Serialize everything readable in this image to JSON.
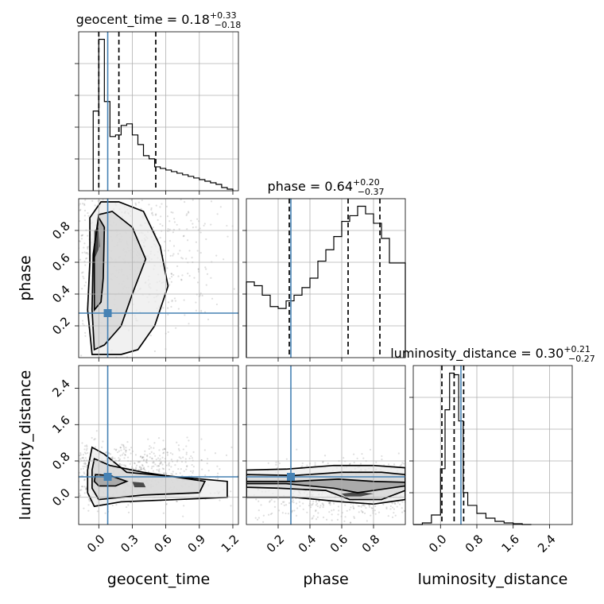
{
  "chart_data": {
    "type": "corner",
    "parameters": [
      "geocent_time",
      "phase",
      "luminosity_distance"
    ],
    "axis_labels": {
      "geocent_time": "geocent_time",
      "phase": "phase",
      "luminosity_distance": "luminosity_distance"
    },
    "ranges": {
      "geocent_time": [
        -0.18,
        1.25
      ],
      "phase": [
        0.0,
        1.0
      ],
      "luminosity_distance": [
        -0.6,
        2.9
      ]
    },
    "ticks": {
      "geocent_time": [
        "0.0",
        "0.3",
        "0.6",
        "0.9",
        "1.2"
      ],
      "phase": [
        "0.2",
        "0.4",
        "0.6",
        "0.8"
      ],
      "luminosity_distance": [
        "0.0",
        "0.8",
        "1.6",
        "2.4"
      ]
    },
    "truths": {
      "geocent_time": 0.08,
      "phase": 0.28,
      "luminosity_distance": 0.45
    },
    "titles": {
      "geocent_time": {
        "name": "geocent_time",
        "median": "0.18",
        "plus": "+0.33",
        "minus": "−0.18"
      },
      "phase": {
        "name": "phase",
        "median": "0.64",
        "plus": "+0.20",
        "minus": "−0.37"
      },
      "luminosity_distance": {
        "name": "luminosity_distance",
        "median": "0.30",
        "plus": "+0.21",
        "minus": "−0.27"
      }
    },
    "quantiles": {
      "geocent_time": [
        0.0,
        0.18,
        0.51
      ],
      "phase": [
        0.27,
        0.64,
        0.84
      ],
      "luminosity_distance": [
        0.03,
        0.3,
        0.51
      ]
    },
    "histograms": {
      "geocent_time": {
        "edges": [
          -0.05,
          0.0,
          0.05,
          0.1,
          0.15,
          0.2,
          0.25,
          0.3,
          0.35,
          0.4,
          0.45,
          0.5,
          0.55,
          0.6,
          0.65,
          0.7,
          0.75,
          0.8,
          0.85,
          0.9,
          0.95,
          1.0,
          1.05,
          1.1,
          1.15,
          1.2
        ],
        "counts": [
          0.5,
          0.95,
          0.56,
          0.34,
          0.35,
          0.41,
          0.42,
          0.35,
          0.29,
          0.22,
          0.2,
          0.15,
          0.14,
          0.13,
          0.12,
          0.11,
          0.1,
          0.09,
          0.08,
          0.07,
          0.06,
          0.05,
          0.04,
          0.02,
          0.01
        ]
      },
      "phase": {
        "edges": [
          0.0,
          0.05,
          0.1,
          0.15,
          0.2,
          0.25,
          0.3,
          0.35,
          0.4,
          0.45,
          0.5,
          0.55,
          0.6,
          0.65,
          0.7,
          0.75,
          0.8,
          0.85,
          0.9,
          0.95,
          1.0
        ],
        "counts": [
          0.4,
          0.38,
          0.33,
          0.27,
          0.26,
          0.3,
          0.33,
          0.37,
          0.42,
          0.51,
          0.57,
          0.64,
          0.72,
          0.75,
          0.8,
          0.76,
          0.71,
          0.63,
          0.5,
          0.5
        ]
      },
      "luminosity_distance": {
        "edges": [
          -0.6,
          -0.4,
          -0.2,
          0.0,
          0.1,
          0.2,
          0.3,
          0.4,
          0.5,
          0.6,
          0.8,
          1.0,
          1.2,
          1.4,
          1.6,
          1.8,
          2.0
        ],
        "counts": [
          0.0,
          0.01,
          0.06,
          0.35,
          0.72,
          0.95,
          0.94,
          0.65,
          0.2,
          0.12,
          0.07,
          0.04,
          0.02,
          0.01,
          0.005,
          0.0
        ]
      }
    },
    "scatter_2d": {
      "geocent_time_vs_phase": {
        "density_peak": {
          "x": -0.03,
          "y": 0.72
        },
        "contours": [
          [
            [
              -0.06,
              0.02
            ],
            [
              -0.1,
              0.3
            ],
            [
              -0.08,
              0.6
            ],
            [
              -0.08,
              0.88
            ],
            [
              0.02,
              0.98
            ],
            [
              0.18,
              0.98
            ],
            [
              0.4,
              0.92
            ],
            [
              0.55,
              0.7
            ],
            [
              0.62,
              0.45
            ],
            [
              0.5,
              0.2
            ],
            [
              0.35,
              0.05
            ],
            [
              0.2,
              0.02
            ]
          ],
          [
            [
              -0.04,
              0.05
            ],
            [
              -0.06,
              0.3
            ],
            [
              -0.05,
              0.65
            ],
            [
              0.0,
              0.9
            ],
            [
              0.12,
              0.92
            ],
            [
              0.3,
              0.82
            ],
            [
              0.42,
              0.62
            ],
            [
              0.3,
              0.4
            ],
            [
              0.2,
              0.2
            ],
            [
              0.05,
              0.08
            ]
          ],
          [
            [
              -0.04,
              0.3
            ],
            [
              -0.04,
              0.7
            ],
            [
              0.0,
              0.88
            ],
            [
              0.05,
              0.82
            ],
            [
              0.04,
              0.5
            ],
            [
              0.02,
              0.35
            ]
          ],
          [
            [
              -0.04,
              0.62
            ],
            [
              -0.04,
              0.8
            ],
            [
              0.0,
              0.82
            ],
            [
              0.01,
              0.7
            ]
          ]
        ]
      },
      "geocent_time_vs_luminosity_distance": {
        "density_peak": {
          "x": 0.0,
          "y": 0.4
        },
        "contours": [
          [
            [
              -0.06,
              1.1
            ],
            [
              0.05,
              0.95
            ],
            [
              0.25,
              0.55
            ],
            [
              0.7,
              0.45
            ],
            [
              1.15,
              0.35
            ],
            [
              1.15,
              0.0
            ],
            [
              0.7,
              -0.05
            ],
            [
              0.2,
              -0.1
            ],
            [
              -0.04,
              -0.2
            ],
            [
              -0.1,
              0.1
            ],
            [
              -0.1,
              0.6
            ]
          ],
          [
            [
              -0.04,
              0.85
            ],
            [
              0.1,
              0.7
            ],
            [
              0.4,
              0.55
            ],
            [
              0.95,
              0.35
            ],
            [
              0.9,
              0.1
            ],
            [
              0.4,
              0.05
            ],
            [
              0.0,
              -0.05
            ],
            [
              -0.06,
              0.2
            ],
            [
              -0.06,
              0.6
            ]
          ],
          [
            [
              -0.03,
              0.5
            ],
            [
              0.1,
              0.48
            ],
            [
              0.25,
              0.35
            ],
            [
              0.15,
              0.25
            ],
            [
              0.0,
              0.25
            ],
            [
              -0.04,
              0.35
            ]
          ],
          [
            [
              0.3,
              0.34
            ],
            [
              0.4,
              0.32
            ],
            [
              0.42,
              0.22
            ],
            [
              0.32,
              0.22
            ]
          ]
        ]
      },
      "phase_vs_luminosity_distance": {
        "density_peak": {
          "x": 0.7,
          "y": 0.05
        },
        "contours": [
          [
            [
              0.0,
              0.6
            ],
            [
              0.25,
              0.62
            ],
            [
              0.55,
              0.7
            ],
            [
              0.8,
              0.7
            ],
            [
              1.0,
              0.65
            ],
            [
              1.0,
              -0.05
            ],
            [
              0.8,
              -0.15
            ],
            [
              0.6,
              -0.1
            ],
            [
              0.3,
              0.0
            ],
            [
              0.0,
              0.0
            ]
          ],
          [
            [
              0.0,
              0.5
            ],
            [
              0.3,
              0.48
            ],
            [
              0.6,
              0.55
            ],
            [
              0.85,
              0.55
            ],
            [
              1.0,
              0.5
            ],
            [
              1.0,
              0.15
            ],
            [
              0.85,
              -0.05
            ],
            [
              0.65,
              -0.05
            ],
            [
              0.5,
              0.15
            ],
            [
              0.2,
              0.2
            ],
            [
              0.0,
              0.22
            ]
          ],
          [
            [
              0.0,
              0.35
            ],
            [
              0.3,
              0.35
            ],
            [
              0.58,
              0.4
            ],
            [
              0.8,
              0.35
            ],
            [
              1.0,
              0.33
            ],
            [
              1.0,
              0.25
            ],
            [
              0.7,
              0.1
            ],
            [
              0.55,
              0.2
            ],
            [
              0.25,
              0.3
            ],
            [
              0.0,
              0.3
            ]
          ],
          [
            [
              0.6,
              0.08
            ],
            [
              0.7,
              0.12
            ],
            [
              0.8,
              0.08
            ],
            [
              0.72,
              0.02
            ],
            [
              0.62,
              0.02
            ]
          ]
        ]
      }
    },
    "grid": true,
    "legend": "none"
  }
}
